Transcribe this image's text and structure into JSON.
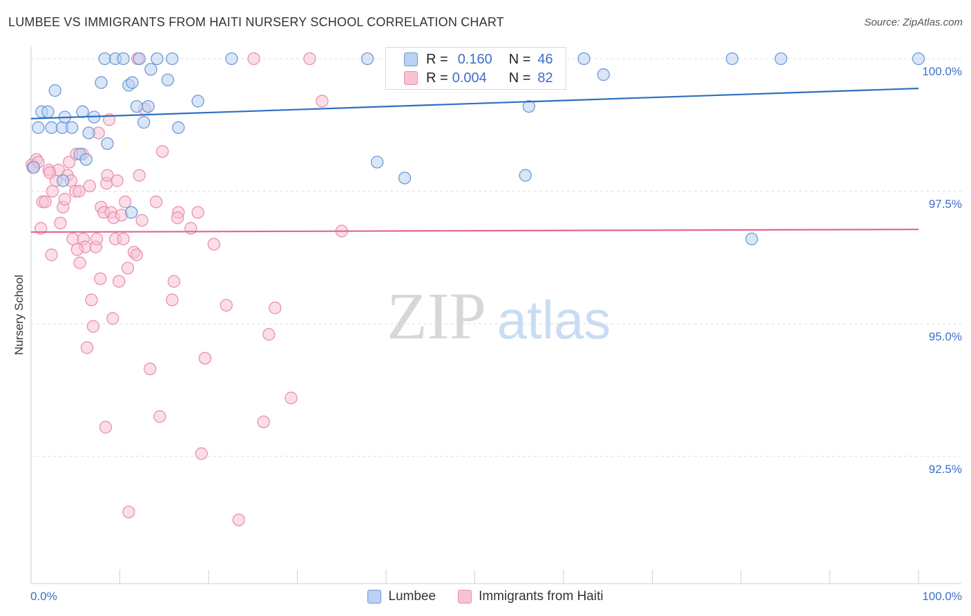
{
  "header": {
    "title": "LUMBEE VS IMMIGRANTS FROM HAITI NURSERY SCHOOL CORRELATION CHART",
    "source": "Source: ZipAtlas.com"
  },
  "watermark": {
    "zip": "ZIP",
    "atlas": "atlas"
  },
  "colors": {
    "lumbee_fill": "#b9d1f2",
    "lumbee_stroke": "#6f9ad6",
    "lumbee_line": "#2f6ec4",
    "haiti_fill": "#f7c3d3",
    "haiti_stroke": "#e891ad",
    "haiti_line": "#e0668f",
    "tick_label": "#3b6fc9",
    "grid": "#dedede"
  },
  "legend": {
    "rows": [
      {
        "series": "Lumbee",
        "r_label": "R =",
        "r_value": "0.160",
        "n_label": "N =",
        "n_value": "46"
      },
      {
        "series": "Immigrants from Haiti",
        "r_label": "R =",
        "r_value": "0.004",
        "n_label": "N =",
        "n_value": "82"
      }
    ]
  },
  "chart_data": {
    "type": "scatter",
    "title": "LUMBEE VS IMMIGRANTS FROM HAITI NURSERY SCHOOL CORRELATION CHART",
    "xlabel": "",
    "ylabel": "Nursery School",
    "xlim": [
      0,
      100
    ],
    "ylim": [
      90.1,
      100.3
    ],
    "x_tick_labels": [
      "0.0%",
      "100.0%"
    ],
    "y_ticks": [
      {
        "value": 100.0,
        "label": "100.0%"
      },
      {
        "value": 97.5,
        "label": "97.5%"
      },
      {
        "value": 95.0,
        "label": "95.0%"
      },
      {
        "value": 92.5,
        "label": "92.5%"
      }
    ],
    "grid": true,
    "legend_position": "top-center",
    "series": [
      {
        "name": "Lumbee",
        "r": 0.16,
        "n": 46,
        "trend": {
          "x": [
            0,
            100
          ],
          "y": [
            98.87,
            99.44
          ]
        },
        "points": [
          [
            0.8,
            98.7
          ],
          [
            1.2,
            99.0
          ],
          [
            1.9,
            99.0
          ],
          [
            2.3,
            98.7
          ],
          [
            2.7,
            99.4
          ],
          [
            3.5,
            98.7
          ],
          [
            3.8,
            98.9
          ],
          [
            4.6,
            98.7
          ],
          [
            5.8,
            99.0
          ],
          [
            6.5,
            98.6
          ],
          [
            7.1,
            98.9
          ],
          [
            5.5,
            98.2
          ],
          [
            6.2,
            98.1
          ],
          [
            7.9,
            99.55
          ],
          [
            8.6,
            98.4
          ],
          [
            8.3,
            100.0
          ],
          [
            9.5,
            100.0
          ],
          [
            10.4,
            100.0
          ],
          [
            11.0,
            99.5
          ],
          [
            11.3,
            97.1
          ],
          [
            11.4,
            99.55
          ],
          [
            11.9,
            99.1
          ],
          [
            12.2,
            100.0
          ],
          [
            12.7,
            98.8
          ],
          [
            13.2,
            99.1
          ],
          [
            13.5,
            99.8
          ],
          [
            14.2,
            100.0
          ],
          [
            15.4,
            99.6
          ],
          [
            15.9,
            100.0
          ],
          [
            16.6,
            98.7
          ],
          [
            18.8,
            99.2
          ],
          [
            22.6,
            100.0
          ],
          [
            37.9,
            100.0
          ],
          [
            39.0,
            98.05
          ],
          [
            42.1,
            97.75
          ],
          [
            54.2,
            100.0
          ],
          [
            55.7,
            97.8
          ],
          [
            56.1,
            99.1
          ],
          [
            62.3,
            100.0
          ],
          [
            64.5,
            99.7
          ],
          [
            79.0,
            100.0
          ],
          [
            81.2,
            96.6
          ],
          [
            84.5,
            100.0
          ],
          [
            100.0,
            100.0
          ],
          [
            3.6,
            97.7
          ],
          [
            0.3,
            97.95
          ]
        ]
      },
      {
        "name": "Immigrants from Haiti",
        "r": 0.004,
        "n": 82,
        "trend": {
          "x": [
            0,
            100
          ],
          "y": [
            96.73,
            96.78
          ]
        },
        "points": [
          [
            0.1,
            98.0
          ],
          [
            0.2,
            97.95
          ],
          [
            0.6,
            98.1
          ],
          [
            0.8,
            98.05
          ],
          [
            1.1,
            96.8
          ],
          [
            1.3,
            97.3
          ],
          [
            1.6,
            97.3
          ],
          [
            2.0,
            97.9
          ],
          [
            2.3,
            96.3
          ],
          [
            2.4,
            97.5
          ],
          [
            2.8,
            97.7
          ],
          [
            3.1,
            97.9
          ],
          [
            3.3,
            96.9
          ],
          [
            3.6,
            97.2
          ],
          [
            3.8,
            97.35
          ],
          [
            4.1,
            97.8
          ],
          [
            4.3,
            98.05
          ],
          [
            4.5,
            97.7
          ],
          [
            4.7,
            96.6
          ],
          [
            5.0,
            97.5
          ],
          [
            5.1,
            98.2
          ],
          [
            5.4,
            97.5
          ],
          [
            5.5,
            96.15
          ],
          [
            5.8,
            98.2
          ],
          [
            5.9,
            96.6
          ],
          [
            6.1,
            96.45
          ],
          [
            6.3,
            94.55
          ],
          [
            6.6,
            97.6
          ],
          [
            6.8,
            95.45
          ],
          [
            7.0,
            94.95
          ],
          [
            7.3,
            96.45
          ],
          [
            7.4,
            96.6
          ],
          [
            7.8,
            95.85
          ],
          [
            7.9,
            97.2
          ],
          [
            8.2,
            97.1
          ],
          [
            8.4,
            93.05
          ],
          [
            8.5,
            97.65
          ],
          [
            8.6,
            97.8
          ],
          [
            8.8,
            98.85
          ],
          [
            9.0,
            97.1
          ],
          [
            9.2,
            95.1
          ],
          [
            9.3,
            97.0
          ],
          [
            9.5,
            96.6
          ],
          [
            9.7,
            97.7
          ],
          [
            9.9,
            95.8
          ],
          [
            10.2,
            97.05
          ],
          [
            10.4,
            96.6
          ],
          [
            10.6,
            97.3
          ],
          [
            10.9,
            96.05
          ],
          [
            11.0,
            91.45
          ],
          [
            11.6,
            96.35
          ],
          [
            11.9,
            96.3
          ],
          [
            12.2,
            97.8
          ],
          [
            12.5,
            96.95
          ],
          [
            12.8,
            99.05
          ],
          [
            13.4,
            94.15
          ],
          [
            14.1,
            97.3
          ],
          [
            14.5,
            93.25
          ],
          [
            14.8,
            98.25
          ],
          [
            15.9,
            95.45
          ],
          [
            16.1,
            95.8
          ],
          [
            16.6,
            97.1
          ],
          [
            18.0,
            96.8
          ],
          [
            18.8,
            97.1
          ],
          [
            19.2,
            92.55
          ],
          [
            19.6,
            94.35
          ],
          [
            20.6,
            96.5
          ],
          [
            22.0,
            95.35
          ],
          [
            23.4,
            91.3
          ],
          [
            25.1,
            100.0
          ],
          [
            26.2,
            93.15
          ],
          [
            26.8,
            94.8
          ],
          [
            27.5,
            95.3
          ],
          [
            29.3,
            93.6
          ],
          [
            31.4,
            100.0
          ],
          [
            32.8,
            99.2
          ],
          [
            35.0,
            96.75
          ],
          [
            16.5,
            97.0
          ],
          [
            12.0,
            100.0
          ],
          [
            2.1,
            97.85
          ],
          [
            7.6,
            98.6
          ],
          [
            5.2,
            96.4
          ]
        ]
      }
    ]
  }
}
